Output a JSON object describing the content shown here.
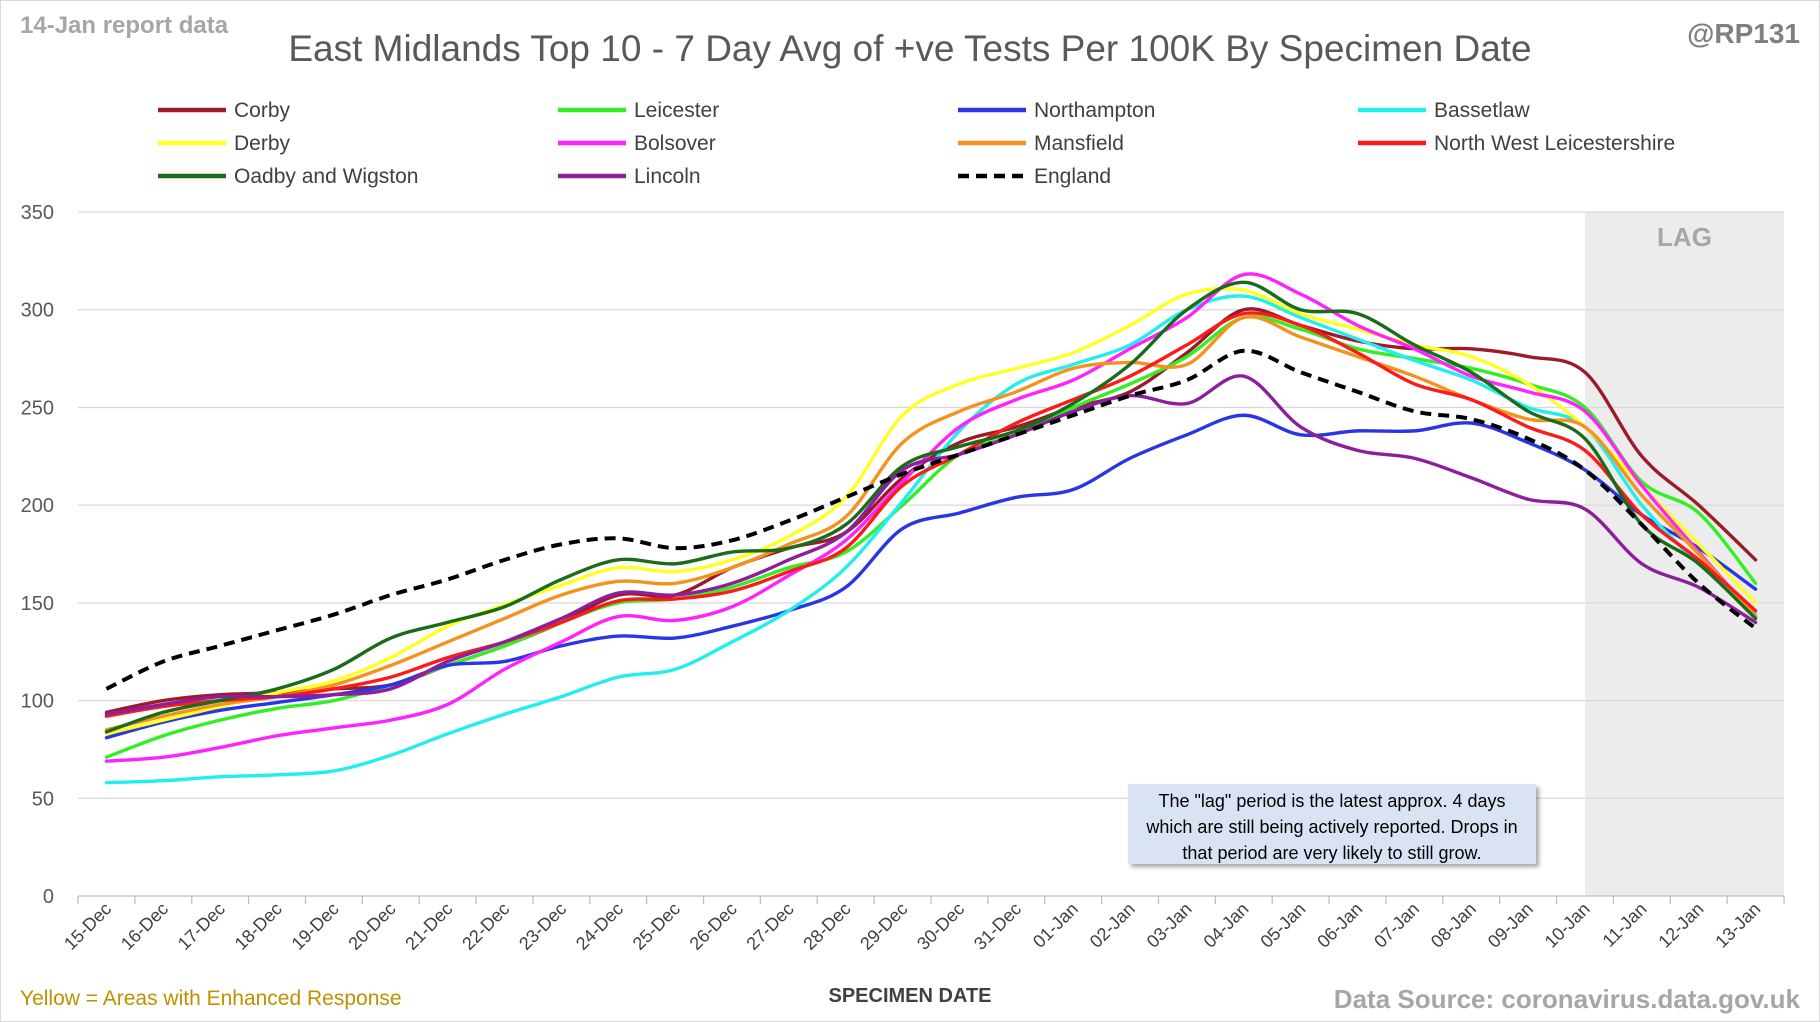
{
  "header": {
    "report_date": "14-Jan report data",
    "handle": "@RP131",
    "title": "East Midlands Top 10 - 7 Day Avg of +ve Tests Per 100K By Specimen Date"
  },
  "footer": {
    "note_left": "Yellow = Areas with Enhanced Response",
    "source": "Data Source: coronavirus.data.gov.uk"
  },
  "annotation": {
    "lag_label": "LAG",
    "lag_note": "The \"lag\" period is the latest approx. 4 days which are still being actively reported. Drops in that period are very likely to still grow."
  },
  "chart_data": {
    "type": "line",
    "title": "East Midlands Top 10 - 7 Day Avg of +ve Tests Per 100K By Specimen Date",
    "xlabel": "SPECIMEN DATE",
    "ylabel": "",
    "ylim": [
      0,
      350
    ],
    "yticks": [
      0,
      50,
      100,
      150,
      200,
      250,
      300,
      350
    ],
    "grid": true,
    "legend_position": "top",
    "lag_region": [
      "10-Jan",
      "13-Jan"
    ],
    "categories": [
      "15-Dec",
      "16-Dec",
      "17-Dec",
      "18-Dec",
      "19-Dec",
      "20-Dec",
      "21-Dec",
      "22-Dec",
      "23-Dec",
      "24-Dec",
      "25-Dec",
      "26-Dec",
      "27-Dec",
      "28-Dec",
      "29-Dec",
      "30-Dec",
      "31-Dec",
      "01-Jan",
      "02-Jan",
      "03-Jan",
      "04-Jan",
      "05-Jan",
      "06-Jan",
      "07-Jan",
      "08-Jan",
      "09-Jan",
      "10-Jan",
      "11-Jan",
      "12-Jan",
      "13-Jan"
    ],
    "series": [
      {
        "name": "Corby",
        "color": "#9b1b2a",
        "dash": false,
        "values": [
          94,
          100,
          103,
          104,
          106,
          108,
          118,
          128,
          140,
          154,
          154,
          168,
          178,
          186,
          214,
          232,
          240,
          250,
          258,
          278,
          300,
          292,
          284,
          280,
          280,
          276,
          268,
          225,
          200,
          172
        ]
      },
      {
        "name": "Leicester",
        "color": "#33ee22",
        "dash": false,
        "values": [
          71,
          82,
          90,
          96,
          100,
          108,
          118,
          128,
          140,
          150,
          152,
          158,
          168,
          176,
          200,
          226,
          236,
          250,
          262,
          276,
          296,
          290,
          280,
          275,
          270,
          262,
          250,
          212,
          196,
          160
        ]
      },
      {
        "name": "Northampton",
        "color": "#2a35e6",
        "dash": false,
        "values": [
          81,
          89,
          95,
          99,
          103,
          108,
          118,
          120,
          128,
          133,
          132,
          138,
          146,
          158,
          188,
          196,
          204,
          208,
          224,
          236,
          246,
          236,
          238,
          238,
          242,
          232,
          218,
          195,
          178,
          157
        ]
      },
      {
        "name": "Bassetlaw",
        "color": "#22eeee",
        "dash": false,
        "values": [
          58,
          59,
          61,
          62,
          64,
          72,
          83,
          93,
          102,
          112,
          116,
          130,
          146,
          168,
          202,
          238,
          262,
          272,
          282,
          300,
          307,
          296,
          285,
          274,
          264,
          250,
          240,
          200,
          170,
          145
        ]
      },
      {
        "name": "Derby",
        "color": "#ffff22",
        "dash": false,
        "values": [
          83,
          90,
          97,
          104,
          110,
          122,
          138,
          149,
          159,
          168,
          166,
          172,
          184,
          204,
          246,
          262,
          270,
          278,
          292,
          308,
          310,
          298,
          290,
          282,
          276,
          262,
          240,
          210,
          180,
          150
        ]
      },
      {
        "name": "Bolsover",
        "color": "#ff22ff",
        "dash": false,
        "values": [
          69,
          71,
          76,
          82,
          86,
          90,
          98,
          116,
          130,
          143,
          141,
          148,
          164,
          182,
          212,
          240,
          254,
          264,
          280,
          296,
          318,
          308,
          292,
          280,
          266,
          258,
          248,
          210,
          176,
          143
        ]
      },
      {
        "name": "Mansfield",
        "color": "#f5921e",
        "dash": false,
        "values": [
          85,
          92,
          98,
          102,
          108,
          118,
          130,
          142,
          154,
          161,
          160,
          168,
          180,
          194,
          232,
          248,
          258,
          270,
          273,
          272,
          296,
          286,
          276,
          266,
          254,
          244,
          240,
          205,
          175,
          143
        ]
      },
      {
        "name": "North West Leicestershire",
        "color": "#ff1a1a",
        "dash": false,
        "values": [
          92,
          97,
          100,
          102,
          106,
          112,
          122,
          130,
          140,
          151,
          152,
          156,
          166,
          178,
          210,
          226,
          242,
          254,
          266,
          282,
          298,
          292,
          278,
          262,
          254,
          240,
          228,
          195,
          172,
          146
        ]
      },
      {
        "name": "Oadby and Wigston",
        "color": "#1a6b1a",
        "dash": false,
        "values": [
          84,
          94,
          100,
          106,
          116,
          132,
          140,
          148,
          162,
          172,
          170,
          176,
          178,
          190,
          220,
          230,
          238,
          252,
          272,
          300,
          314,
          300,
          298,
          282,
          268,
          248,
          234,
          190,
          170,
          142
        ]
      },
      {
        "name": "Lincoln",
        "color": "#8e1f9c",
        "dash": false,
        "values": [
          93,
          98,
          102,
          102,
          103,
          106,
          120,
          130,
          142,
          155,
          154,
          160,
          172,
          186,
          218,
          226,
          236,
          248,
          256,
          252,
          266,
          240,
          228,
          224,
          214,
          203,
          198,
          170,
          158,
          140
        ]
      },
      {
        "name": "England",
        "color": "#000000",
        "dash": true,
        "values": [
          106,
          120,
          128,
          136,
          144,
          154,
          162,
          172,
          180,
          183,
          178,
          182,
          192,
          204,
          216,
          226,
          236,
          246,
          256,
          264,
          279,
          268,
          258,
          248,
          244,
          234,
          218,
          190,
          160,
          137
        ]
      }
    ]
  }
}
